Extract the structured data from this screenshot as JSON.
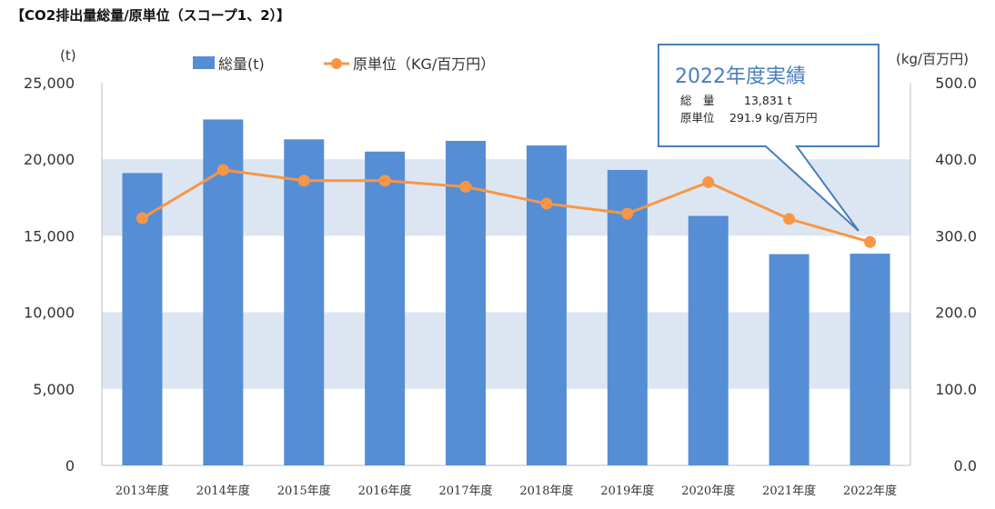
{
  "chart_data": {
    "type": "bar",
    "title": "【CO2排出量総量/原単位（スコープ1、2）】",
    "left_axis_unit": "(t)",
    "right_axis_unit": "(kg/百万円)",
    "categories": [
      "2013年度",
      "2014年度",
      "2015年度",
      "2016年度",
      "2017年度",
      "2018年度",
      "2019年度",
      "2020年度",
      "2021年度",
      "2022年度"
    ],
    "series": [
      {
        "name": "総量(t)",
        "type": "bar",
        "axis": "left",
        "color": "#558ed5",
        "values": [
          19100,
          22600,
          21300,
          20500,
          21200,
          20900,
          19300,
          16300,
          13800,
          13831
        ]
      },
      {
        "name": "原単位（KG/百万円）",
        "type": "line",
        "axis": "right",
        "color": "#f79646",
        "values": [
          323,
          386,
          372,
          372,
          364,
          342,
          329,
          370,
          322,
          291.9
        ]
      }
    ],
    "ylim_left": [
      0,
      25000
    ],
    "ylim_right": [
      0,
      500
    ],
    "yticks_left": [
      "0",
      "5,000",
      "10,000",
      "15,000",
      "20,000",
      "25,000"
    ],
    "yticks_right": [
      "0.0",
      "100.0",
      "200.0",
      "300.0",
      "400.0",
      "500.0"
    ],
    "band_color": "#dce6f2",
    "legend_position": "top",
    "callout": {
      "title": "2022年度実績",
      "row1_label": "総　量",
      "row1_value": "13,831 t",
      "row2_label": "原単位",
      "row2_value": "291.9 kg/百万円",
      "border_color": "#4a7ebb"
    }
  }
}
